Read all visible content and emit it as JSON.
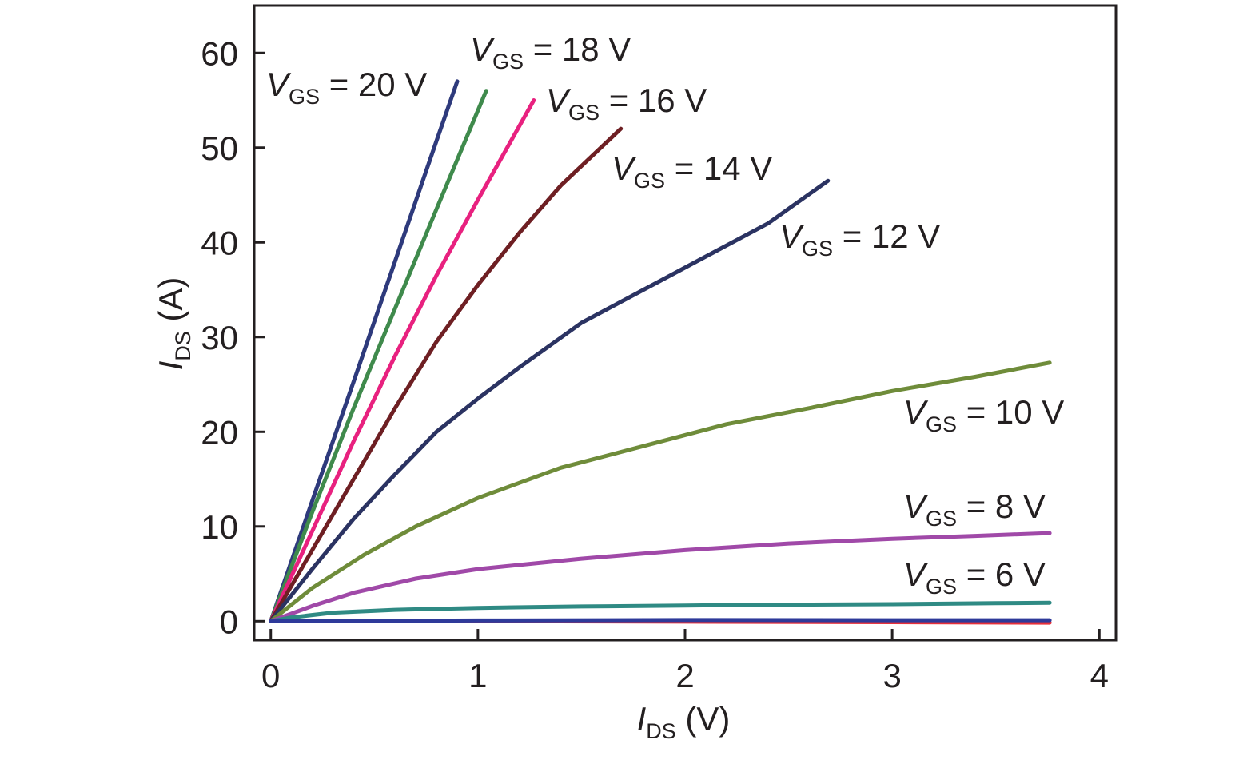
{
  "chart_data": {
    "type": "line",
    "xlabel": {
      "symbol": "I",
      "subscript": "DS",
      "unit": " (V)"
    },
    "ylabel": {
      "symbol": "I",
      "subscript": "DS",
      "unit": " (A)"
    },
    "xlim": [
      -0.08,
      4.08
    ],
    "ylim": [
      -2,
      65
    ],
    "xticks": [
      "0",
      "1",
      "2",
      "3",
      "4"
    ],
    "yticks": [
      "0",
      "10",
      "20",
      "30",
      "40",
      "50",
      "60"
    ],
    "grid": false,
    "legend": "inline labels",
    "series": [
      {
        "name": "VGS = 20 V",
        "label": {
          "symbol": "V",
          "subscript": "GS",
          "rest": " = 20 V"
        },
        "color": "#2e3a7c",
        "x": [
          0,
          0.2,
          0.4,
          0.6,
          0.8,
          0.9
        ],
        "y": [
          0,
          12.7,
          25.3,
          38.0,
          50.7,
          57.0
        ]
      },
      {
        "name": "VGS = 18 V",
        "label": {
          "symbol": "V",
          "subscript": "GS",
          "rest": " = 18 V"
        },
        "color": "#3f8a4c",
        "x": [
          0,
          0.2,
          0.4,
          0.6,
          0.8,
          1.04
        ],
        "y": [
          0,
          11.5,
          22.5,
          33.0,
          43.5,
          56.0
        ]
      },
      {
        "name": "VGS = 16 V",
        "label": {
          "symbol": "V",
          "subscript": "GS",
          "rest": " = 16 V"
        },
        "color": "#e8217f",
        "x": [
          0,
          0.2,
          0.4,
          0.6,
          0.8,
          1.0,
          1.27
        ],
        "y": [
          0,
          9.5,
          19.0,
          28.0,
          36.5,
          44.5,
          55.0
        ]
      },
      {
        "name": "VGS = 14 V",
        "label": {
          "symbol": "V",
          "subscript": "GS",
          "rest": " = 14 V"
        },
        "color": "#6e1f23",
        "x": [
          0,
          0.2,
          0.4,
          0.6,
          0.8,
          1.0,
          1.2,
          1.4,
          1.69
        ],
        "y": [
          0,
          7.5,
          15.0,
          22.5,
          29.5,
          35.5,
          41.0,
          46.0,
          52.0
        ]
      },
      {
        "name": "VGS = 12 V",
        "label": {
          "symbol": "V",
          "subscript": "GS",
          "rest": " = 12 V"
        },
        "color": "#2b3362",
        "x": [
          0,
          0.2,
          0.4,
          0.6,
          0.8,
          1.0,
          1.2,
          1.5,
          1.8,
          2.1,
          2.4,
          2.69
        ],
        "y": [
          0,
          5.5,
          10.8,
          15.5,
          20.0,
          23.5,
          26.8,
          31.5,
          35.0,
          38.5,
          42.0,
          46.5
        ]
      },
      {
        "name": "VGS = 10 V",
        "label": {
          "symbol": "V",
          "subscript": "GS",
          "rest": " = 10 V"
        },
        "color": "#6f8c3a",
        "x": [
          0,
          0.2,
          0.45,
          0.7,
          1.0,
          1.4,
          1.8,
          2.2,
          2.6,
          3.0,
          3.4,
          3.76
        ],
        "y": [
          0,
          3.5,
          7.0,
          10.0,
          13.0,
          16.2,
          18.5,
          20.8,
          22.5,
          24.3,
          25.8,
          27.3
        ]
      },
      {
        "name": "VGS = 8 V",
        "label": {
          "symbol": "V",
          "subscript": "GS",
          "rest": " = 8 V"
        },
        "color": "#a049a8",
        "x": [
          0,
          0.2,
          0.4,
          0.7,
          1.0,
          1.5,
          2.0,
          2.5,
          3.0,
          3.4,
          3.76
        ],
        "y": [
          0,
          1.6,
          3.0,
          4.5,
          5.5,
          6.6,
          7.5,
          8.2,
          8.7,
          9.0,
          9.3
        ]
      },
      {
        "name": "VGS = 6 V",
        "label": {
          "symbol": "V",
          "subscript": "GS",
          "rest": " = 6 V"
        },
        "color": "#2f8a84",
        "x": [
          0,
          0.1,
          0.3,
          0.6,
          1.0,
          1.5,
          2.0,
          2.5,
          3.0,
          3.5,
          3.76
        ],
        "y": [
          0,
          0.4,
          0.9,
          1.2,
          1.4,
          1.55,
          1.65,
          1.75,
          1.8,
          1.9,
          1.95
        ]
      },
      {
        "name": "",
        "color": "#e8303a",
        "x": [
          0,
          1.0,
          2.0,
          3.0,
          3.76
        ],
        "y": [
          0,
          0.0,
          -0.05,
          -0.1,
          -0.15
        ]
      },
      {
        "name": "",
        "color": "#2e3a9a",
        "x": [
          0,
          1.0,
          2.0,
          3.0,
          3.76
        ],
        "y": [
          0,
          0.08,
          0.12,
          0.1,
          0.1
        ]
      }
    ]
  }
}
